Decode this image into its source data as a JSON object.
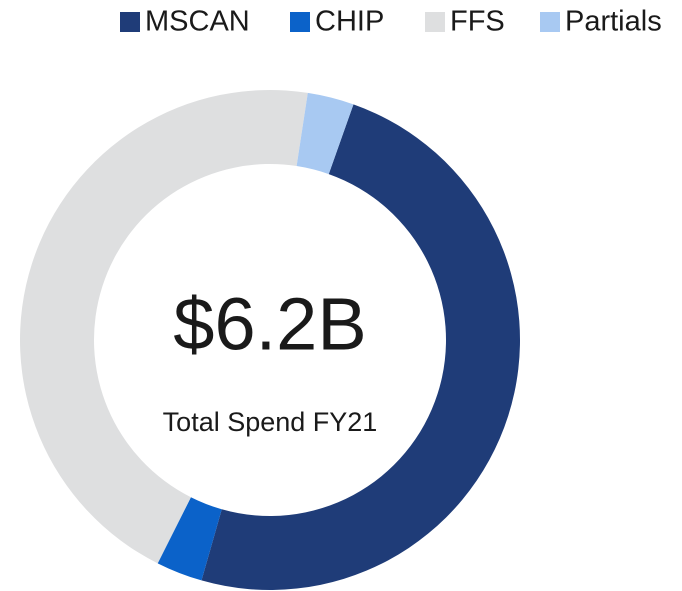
{
  "chart_data": {
    "type": "donut",
    "categories": [
      "MSCAN",
      "CHIP",
      "FFS",
      "Partials"
    ],
    "values": [
      49,
      3,
      45,
      3
    ],
    "colors": [
      "#1f3c78",
      "#0b62c9",
      "#dedfe0",
      "#a8c9f2"
    ],
    "center_value": "$6.2B",
    "center_label": "Total Spend FY21",
    "legend": "top"
  }
}
